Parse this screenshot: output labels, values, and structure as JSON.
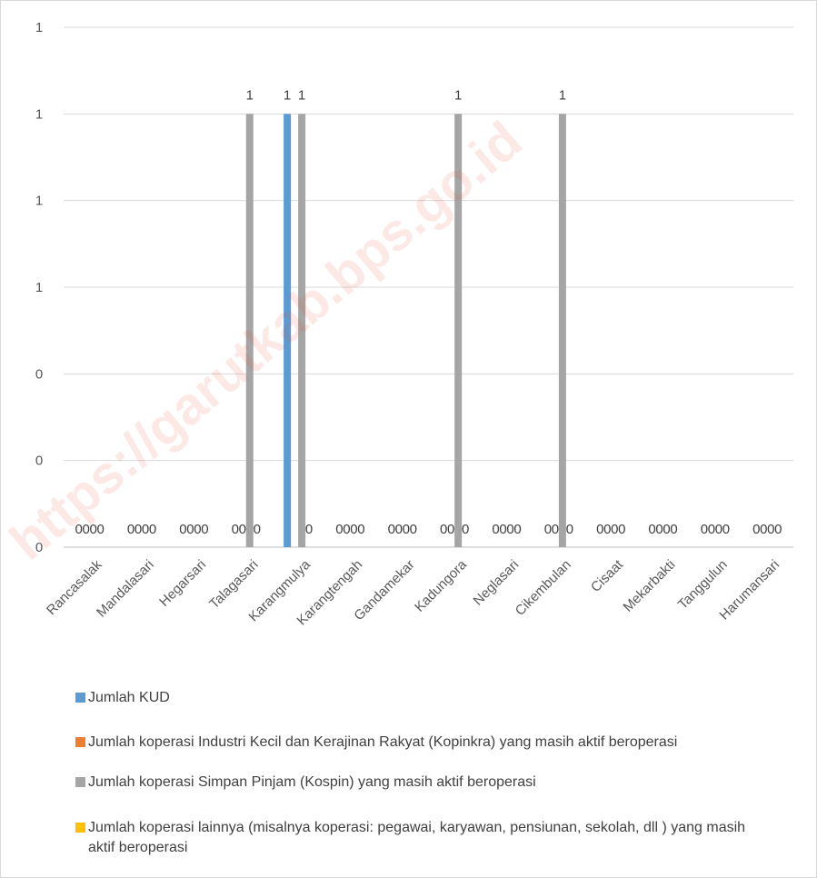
{
  "chart_data": {
    "type": "bar",
    "title": "",
    "xlabel": "",
    "ylabel": "",
    "ylim": [
      0,
      1.2
    ],
    "y_tick_labels": [
      "0",
      "0",
      "0",
      "1",
      "1",
      "1",
      "1"
    ],
    "grid": true,
    "legend_position": "bottom",
    "watermark": "https://garutkab.bps.go.id",
    "categories": [
      "Rancasalak",
      "Mandalasari",
      "Hegarsari",
      "Talagasari",
      "Karangmulya",
      "Karangtengah",
      "Gandamekar",
      "Kadungora",
      "Neglasari",
      "Cikembulan",
      "Cisaat",
      "Mekarbakti",
      "Tanggulun",
      "Harumansari"
    ],
    "series": [
      {
        "name": "Jumlah KUD",
        "color": "#5b9bd5",
        "values": [
          0,
          0,
          0,
          0,
          1,
          0,
          0,
          0,
          0,
          0,
          0,
          0,
          0,
          0
        ],
        "labels": [
          "0",
          "0",
          "0",
          "0",
          "1",
          "0",
          "0",
          "0",
          "0",
          "0",
          "0",
          "0",
          "0",
          "0"
        ]
      },
      {
        "name": "Jumlah koperasi Industri Kecil dan Kerajinan Rakyat (Kopinkra) yang masih aktif beroperasi",
        "color": "#ed7d31",
        "values": [
          0,
          0,
          0,
          0,
          0,
          0,
          0,
          0,
          0,
          0,
          0,
          0,
          0,
          0
        ],
        "labels": [
          "0",
          "0",
          "0",
          "0",
          "",
          "0",
          "0",
          "0",
          "0",
          "0",
          "0",
          "0",
          "0",
          "0"
        ]
      },
      {
        "name": "Jumlah koperasi Simpan Pinjam (Kospin) yang masih aktif  beroperasi",
        "color": "#a5a5a5",
        "values": [
          0,
          0,
          0,
          1,
          1,
          0,
          0,
          1,
          0,
          1,
          0,
          0,
          0,
          0
        ],
        "labels": [
          "0",
          "0",
          "0",
          "1",
          "1",
          "0",
          "0",
          "1",
          "0",
          "1",
          "0",
          "0",
          "0",
          "0"
        ]
      },
      {
        "name": "Jumlah koperasi lainnya  (misalnya koperasi: pegawai, karyawan, pensiunan, sekolah, dll  ) yang masih aktif  beroperasi",
        "color": "#ffc000",
        "values": [
          0,
          0,
          0,
          0,
          0,
          0,
          0,
          0,
          0,
          0,
          0,
          0,
          0,
          0
        ],
        "labels": [
          "0",
          "0",
          "0",
          "0",
          "0",
          "0",
          "0",
          "0",
          "0",
          "0",
          "0",
          "0",
          "0",
          "0"
        ]
      }
    ]
  },
  "legend": {
    "items": [
      {
        "label": "Jumlah KUD",
        "color": "#5b9bd5"
      },
      {
        "label": "Jumlah koperasi Industri Kecil dan Kerajinan Rakyat (Kopinkra) yang masih aktif beroperasi",
        "color": "#ed7d31"
      },
      {
        "label": "Jumlah koperasi Simpan Pinjam (Kospin) yang masih aktif  beroperasi",
        "color": "#a5a5a5"
      },
      {
        "label": "Jumlah koperasi lainnya  (misalnya koperasi: pegawai, karyawan, pensiunan, sekolah, dll  ) yang masih aktif  beroperasi",
        "color": "#ffc000"
      }
    ]
  }
}
